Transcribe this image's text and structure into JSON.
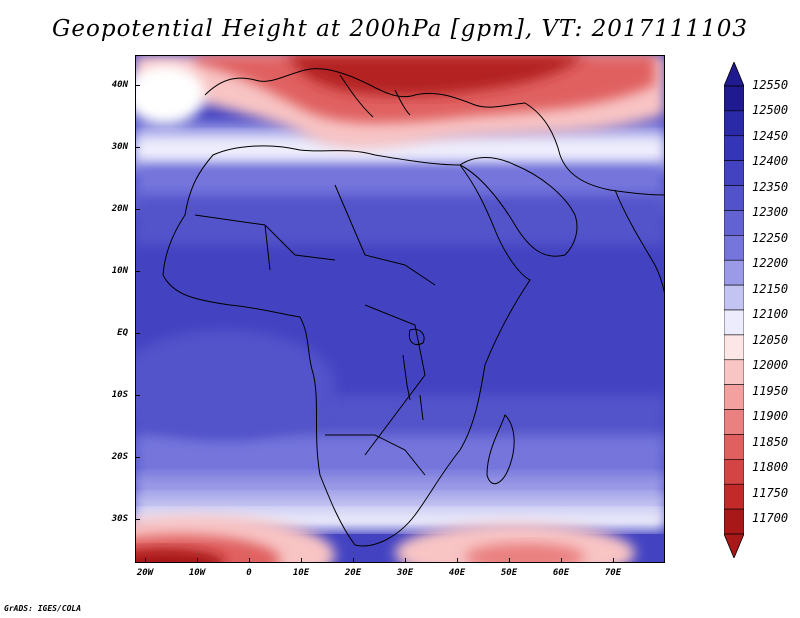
{
  "title": "Geopotential Height at 200hPa [gpm], VT: 2017111103",
  "credit": "GrADS: IGES/COLA",
  "map": {
    "variable": "Geopotential Height",
    "level": "200hPa",
    "units": "gpm",
    "valid_time": "2017111103",
    "lon_range": [
      -22,
      80
    ],
    "lat_range": [
      -37,
      45
    ],
    "y_ticks": [
      {
        "label": "40N",
        "lat": 40
      },
      {
        "label": "30N",
        "lat": 30
      },
      {
        "label": "20N",
        "lat": 20
      },
      {
        "label": "10N",
        "lat": 10
      },
      {
        "label": "EQ",
        "lat": 0
      },
      {
        "label": "10S",
        "lat": -10
      },
      {
        "label": "20S",
        "lat": -20
      },
      {
        "label": "30S",
        "lat": -30
      }
    ],
    "x_ticks": [
      {
        "label": "20W",
        "lon": -20
      },
      {
        "label": "10W",
        "lon": -10
      },
      {
        "label": "0",
        "lon": 0
      },
      {
        "label": "10E",
        "lon": 10
      },
      {
        "label": "20E",
        "lon": 20
      },
      {
        "label": "30E",
        "lon": 30
      },
      {
        "label": "40E",
        "lon": 40
      },
      {
        "label": "50E",
        "lon": 50
      },
      {
        "label": "60E",
        "lon": 60
      },
      {
        "label": "70E",
        "lon": 70
      }
    ]
  },
  "colorbar": {
    "levels": [
      "12550",
      "12500",
      "12450",
      "12400",
      "12350",
      "12300",
      "12250",
      "12200",
      "12150",
      "12100",
      "12050",
      "12000",
      "11950",
      "11900",
      "11850",
      "11800",
      "11750",
      "11700"
    ],
    "colors": [
      "#1f1a8f",
      "#2a2aa8",
      "#3535b8",
      "#4343c2",
      "#5252ca",
      "#6262d2",
      "#7575dc",
      "#9a9ae6",
      "#c4c4f2",
      "#ececfc",
      "#fde6e6",
      "#f8c4c4",
      "#f2a0a0",
      "#ea8080",
      "#e06060",
      "#d44444",
      "#c22a2a",
      "#a81818"
    ]
  }
}
